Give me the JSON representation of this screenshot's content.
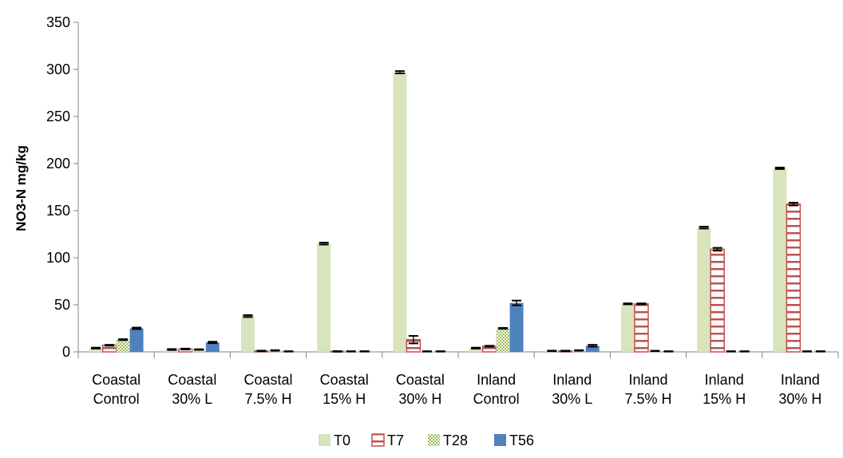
{
  "chart_data": {
    "type": "bar",
    "title": "",
    "xlabel": "",
    "ylabel": "NO3-N mg/kg",
    "ylim": [
      0,
      350
    ],
    "yticks": [
      "0",
      "50",
      "100",
      "150",
      "200",
      "250",
      "300",
      "350"
    ],
    "grid": false,
    "legend_position": "bottom",
    "categories": [
      [
        "Coastal",
        "Control"
      ],
      [
        "Coastal",
        "30% L"
      ],
      [
        "Coastal",
        "7.5% H"
      ],
      [
        "Coastal",
        "15% H"
      ],
      [
        "Coastal",
        "30% H"
      ],
      [
        "Inland",
        "Control"
      ],
      [
        "Inland",
        "30% L"
      ],
      [
        "Inland",
        "7.5% H"
      ],
      [
        "Inland",
        "15% H"
      ],
      [
        "Inland",
        "30% H"
      ]
    ],
    "series": [
      {
        "name": "T0",
        "fill": "#d7e4bd",
        "pattern": "solid",
        "values": [
          4,
          2.5,
          38,
          115,
          297,
          4,
          1,
          51,
          132,
          195
        ],
        "errors": [
          0.5,
          0.5,
          1,
          1,
          1.2,
          0.5,
          0.3,
          0.5,
          1,
          0.8
        ]
      },
      {
        "name": "T7",
        "fill": "#c0504d",
        "pattern": "horizontal-lines",
        "values": [
          7,
          3,
          1,
          0.5,
          13,
          6,
          1,
          51,
          109,
          157
        ],
        "errors": [
          0.5,
          0.5,
          0.3,
          0.3,
          4,
          0.5,
          0.3,
          0.5,
          1.5,
          1.5
        ]
      },
      {
        "name": "T28",
        "fill": "#9bbb59",
        "pattern": "dotted",
        "values": [
          13,
          2.5,
          1.5,
          0.5,
          0.5,
          25,
          1.5,
          1,
          0.5,
          0.5
        ],
        "errors": [
          0.5,
          0.3,
          0.3,
          0.2,
          0.2,
          0.5,
          0.3,
          0.2,
          0.2,
          0.2
        ]
      },
      {
        "name": "T56",
        "fill": "#4f81bd",
        "pattern": "solid",
        "values": [
          25,
          10,
          0.5,
          0.5,
          0.5,
          52,
          6.5,
          0.5,
          0.5,
          0.5
        ],
        "errors": [
          0.8,
          0.8,
          0.2,
          0.2,
          0.2,
          2.5,
          1,
          0.2,
          0.2,
          0.2
        ]
      }
    ]
  }
}
